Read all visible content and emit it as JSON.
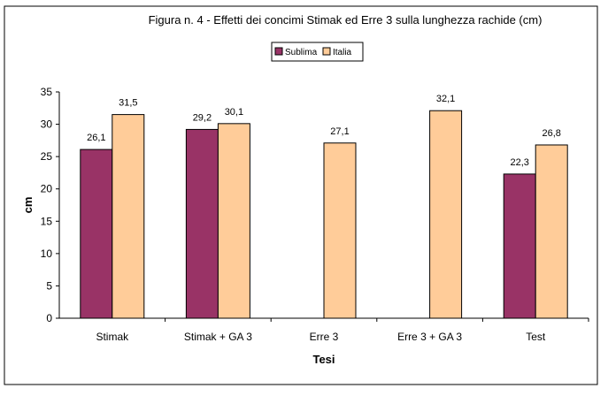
{
  "chart_data": {
    "type": "bar",
    "title": "Figura n. 4 - Effetti dei concimi Stimak ed Erre 3 sulla lunghezza rachide (cm)",
    "xlabel": "Tesi",
    "ylabel": "cm",
    "ylim": [
      0,
      35
    ],
    "yticks": [
      "0",
      "5",
      "10",
      "15",
      "20",
      "25",
      "30",
      "35"
    ],
    "categories": [
      "Stimak",
      "Stimak + GA 3",
      "Erre 3",
      "Erre 3 + GA 3",
      "Test"
    ],
    "series": [
      {
        "name": "Sublima",
        "color": "#993366",
        "values": [
          26.1,
          29.2,
          null,
          null,
          22.3
        ],
        "labels": [
          "26,1",
          "29,2",
          null,
          null,
          "22,3"
        ]
      },
      {
        "name": "Italia",
        "color": "#FFCC99",
        "values": [
          31.5,
          30.1,
          27.1,
          32.1,
          26.8
        ],
        "labels": [
          "31,5",
          "30,1",
          "27,1",
          "32,1",
          "26,8"
        ]
      }
    ],
    "legend": "top-center",
    "grid": false
  }
}
